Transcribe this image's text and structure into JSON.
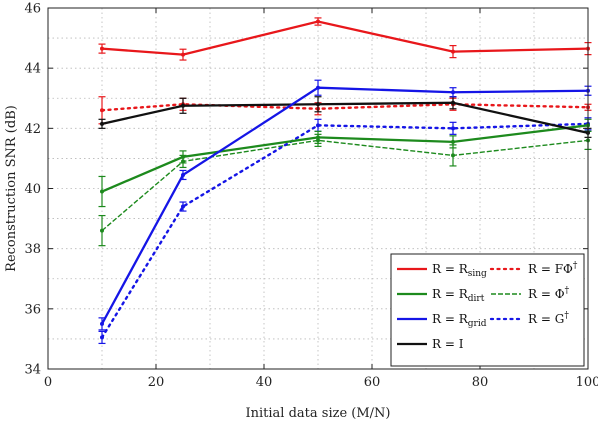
{
  "chart_data": {
    "type": "line",
    "xlabel": "Initial data size (M/N)",
    "ylabel": "Reconstruction SNR (dB)",
    "xlim": [
      0,
      100
    ],
    "ylim": [
      34,
      46
    ],
    "xticks": [
      "0",
      "20",
      "40",
      "60",
      "80",
      "100"
    ],
    "yticks": [
      "34",
      "36",
      "38",
      "40",
      "42",
      "44",
      "46"
    ],
    "grid": true,
    "legend_position": "bottom-right",
    "series": [
      {
        "name": "R = R",
        "name_sub": "sing",
        "color": "#e8171b",
        "style": "solid",
        "x": [
          10,
          25,
          50,
          75,
          100
        ],
        "y": [
          44.65,
          44.45,
          45.55,
          44.55,
          44.65
        ],
        "err": [
          0.15,
          0.18,
          0.12,
          0.2,
          0.2
        ]
      },
      {
        "name": "R = R",
        "name_sub": "dirt",
        "color": "#1d8a1d",
        "style": "solid",
        "x": [
          10,
          25,
          50,
          75,
          100
        ],
        "y": [
          39.9,
          41.05,
          41.7,
          41.55,
          42.1
        ],
        "err": [
          0.5,
          0.2,
          0.2,
          0.2,
          0.2
        ]
      },
      {
        "name": "R = R",
        "name_sub": "grid",
        "color": "#1515e6",
        "style": "solid",
        "x": [
          10,
          25,
          50,
          75,
          100
        ],
        "y": [
          35.5,
          40.45,
          43.35,
          43.2,
          43.25
        ],
        "err": [
          0.2,
          0.15,
          0.25,
          0.15,
          0.15
        ]
      },
      {
        "name": "R = I",
        "name_sub": "",
        "color": "#111111",
        "style": "solid",
        "x": [
          10,
          25,
          50,
          75,
          100
        ],
        "y": [
          42.15,
          42.75,
          42.8,
          42.85,
          41.85
        ],
        "err": [
          0.15,
          0.25,
          0.25,
          0.2,
          0.15
        ]
      },
      {
        "name": "R = FΦ",
        "name_sub": "†",
        "color": "#e8171b",
        "style": "dotted",
        "x": [
          10,
          25,
          50,
          75,
          100
        ],
        "y": [
          42.6,
          42.8,
          42.65,
          42.8,
          42.7
        ],
        "err": [
          0.45,
          0.2,
          0.2,
          0.2,
          0.1
        ]
      },
      {
        "name": "R = Φ",
        "name_sub": "†",
        "color": "#1d8a1d",
        "style": "dashed",
        "x": [
          10,
          25,
          50,
          75,
          100
        ],
        "y": [
          38.6,
          40.9,
          41.6,
          41.1,
          41.6
        ],
        "err": [
          0.5,
          0.2,
          0.2,
          0.35,
          0.3
        ]
      },
      {
        "name": "R = G",
        "name_sub": "†",
        "color": "#1515e6",
        "style": "dotted",
        "x": [
          10,
          25,
          50,
          75,
          100
        ],
        "y": [
          35.05,
          39.4,
          42.1,
          42.0,
          42.15
        ],
        "err": [
          0.2,
          0.15,
          0.2,
          0.2,
          0.2
        ]
      }
    ]
  }
}
